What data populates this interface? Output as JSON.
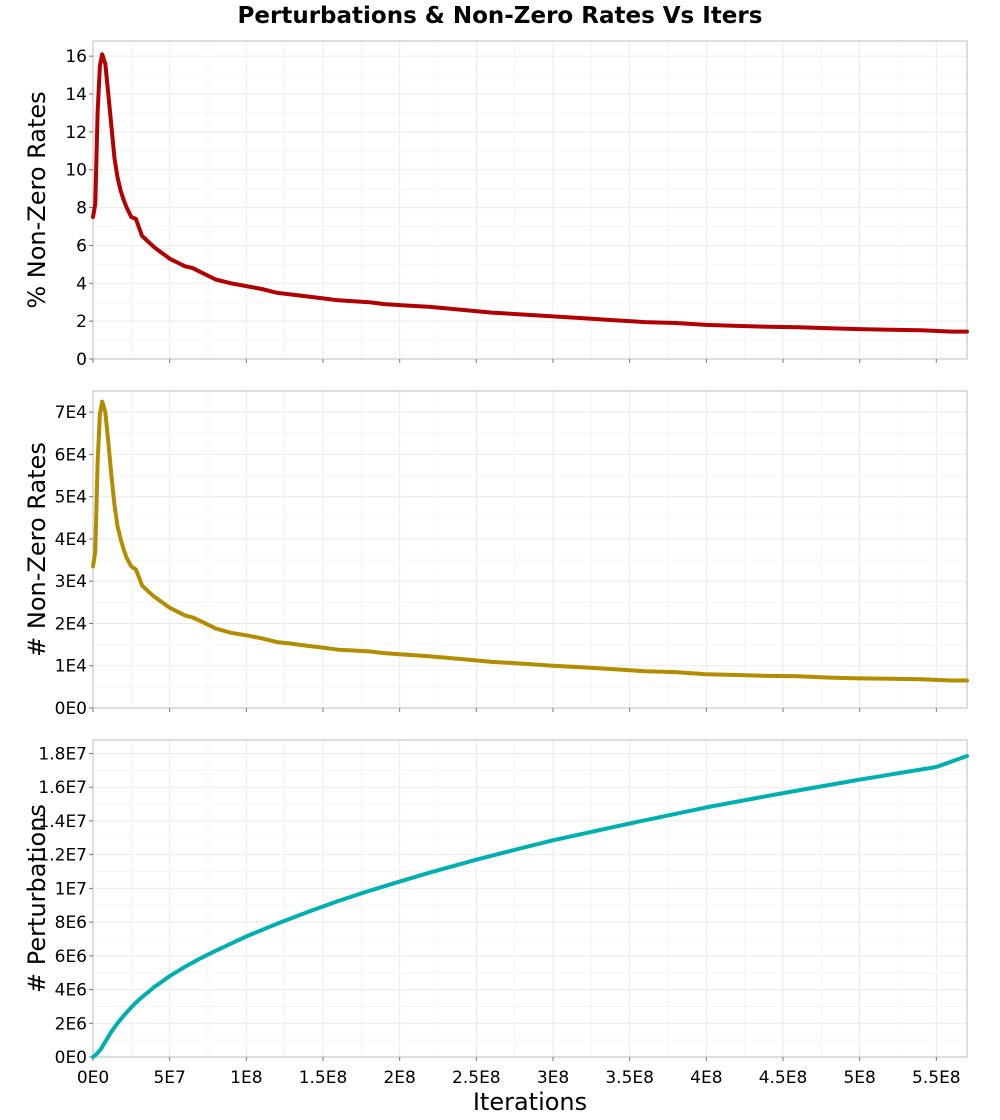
{
  "chart_data": {
    "title": "Perturbations & Non-Zero Rates Vs Iters",
    "type": "line",
    "x_axis": {
      "label": "Iterations",
      "lim": [
        0,
        570000000
      ],
      "ticks": [
        0,
        50000000,
        100000000,
        150000000,
        200000000,
        250000000,
        300000000,
        350000000,
        400000000,
        450000000,
        500000000,
        550000000
      ],
      "tick_labels": [
        "0E0",
        "5E7",
        "1E8",
        "1.5E8",
        "2E8",
        "2.5E8",
        "3E8",
        "3.5E8",
        "4E8",
        "4.5E8",
        "5E8",
        "5.5E8"
      ]
    },
    "grid": true,
    "panels": [
      {
        "ylabel": "% Non-Zero Rates",
        "ylim": [
          0,
          16.8
        ],
        "yticks": [
          0,
          2,
          4,
          6,
          8,
          10,
          12,
          14,
          16
        ],
        "ytick_labels": [
          "0",
          "2",
          "4",
          "6",
          "8",
          "10",
          "12",
          "14",
          "16"
        ],
        "color": "#b30000",
        "series": [
          {
            "x": [
              0,
              1500000,
              3000000,
              4500000,
              6000000,
              8000000,
              10000000,
              12000000,
              14000000,
              16000000,
              18000000,
              20000000,
              22000000,
              25000000,
              28000000,
              32000000,
              36000000,
              40000000,
              45000000,
              50000000,
              55000000,
              60000000,
              65000000,
              70000000,
              80000000,
              90000000,
              100000000,
              110000000,
              120000000,
              130000000,
              140000000,
              150000000,
              160000000,
              170000000,
              180000000,
              190000000,
              200000000,
              220000000,
              240000000,
              260000000,
              280000000,
              300000000,
              320000000,
              340000000,
              360000000,
              380000000,
              400000000,
              420000000,
              440000000,
              460000000,
              480000000,
              500000000,
              520000000,
              540000000,
              560000000,
              570000000
            ],
            "y": [
              7.5,
              8.2,
              13.0,
              15.5,
              16.1,
              15.6,
              14.0,
              12.3,
              10.6,
              9.6,
              8.9,
              8.4,
              8.0,
              7.5,
              7.4,
              6.5,
              6.2,
              5.9,
              5.6,
              5.3,
              5.1,
              4.9,
              4.8,
              4.6,
              4.2,
              4.0,
              3.85,
              3.7,
              3.5,
              3.4,
              3.3,
              3.2,
              3.1,
              3.05,
              3.0,
              2.9,
              2.85,
              2.75,
              2.6,
              2.45,
              2.35,
              2.25,
              2.15,
              2.05,
              1.95,
              1.9,
              1.8,
              1.75,
              1.7,
              1.68,
              1.62,
              1.58,
              1.55,
              1.52,
              1.45,
              1.45
            ]
          }
        ]
      },
      {
        "ylabel": "# Non-Zero Rates",
        "ylim": [
          0,
          75000
        ],
        "yticks": [
          0,
          10000,
          20000,
          30000,
          40000,
          50000,
          60000,
          70000
        ],
        "ytick_labels": [
          "0E0",
          "1E4",
          "2E4",
          "3E4",
          "4E4",
          "5E4",
          "6E4",
          "7E4"
        ],
        "color": "#b38c00",
        "series": [
          {
            "x": [
              0,
              1500000,
              3000000,
              4500000,
              6000000,
              8000000,
              10000000,
              12000000,
              14000000,
              16000000,
              18000000,
              20000000,
              22000000,
              25000000,
              28000000,
              32000000,
              36000000,
              40000000,
              45000000,
              50000000,
              55000000,
              60000000,
              65000000,
              70000000,
              80000000,
              90000000,
              100000000,
              110000000,
              120000000,
              130000000,
              140000000,
              150000000,
              160000000,
              170000000,
              180000000,
              190000000,
              200000000,
              220000000,
              240000000,
              260000000,
              280000000,
              300000000,
              320000000,
              340000000,
              360000000,
              380000000,
              400000000,
              420000000,
              440000000,
              460000000,
              480000000,
              500000000,
              520000000,
              540000000,
              560000000,
              570000000
            ],
            "y": [
              33500,
              37000,
              58000,
              69500,
              72500,
              70000,
              63000,
              55000,
              48000,
              43000,
              40000,
              37500,
              35500,
              33500,
              32800,
              29000,
              27600,
              26300,
              25000,
              23700,
              22800,
              21900,
              21400,
              20600,
              18800,
              17800,
              17200,
              16500,
              15600,
              15200,
              14700,
              14300,
              13800,
              13600,
              13400,
              13000,
              12700,
              12200,
              11600,
              10900,
              10500,
              10000,
              9600,
              9150,
              8700,
              8500,
              8000,
              7800,
              7600,
              7500,
              7200,
              7000,
              6900,
              6800,
              6500,
              6500
            ]
          }
        ]
      },
      {
        "ylabel": "# Perturbations",
        "ylim": [
          0,
          18800000
        ],
        "yticks": [
          0,
          2000000,
          4000000,
          6000000,
          8000000,
          10000000,
          12000000,
          14000000,
          16000000,
          18000000
        ],
        "ytick_labels": [
          "0E0",
          "2E6",
          "4E6",
          "6E6",
          "8E6",
          "1E7",
          "1.2E7",
          "1.4E7",
          "1.6E7",
          "1.8E7"
        ],
        "color": "#00b0b0",
        "series": [
          {
            "x": [
              0,
              2000000,
              5000000,
              8000000,
              12000000,
              16000000,
              20000000,
              25000000,
              30000000,
              40000000,
              50000000,
              60000000,
              70000000,
              80000000,
              100000000,
              120000000,
              140000000,
              160000000,
              180000000,
              200000000,
              220000000,
              250000000,
              280000000,
              300000000,
              350000000,
              400000000,
              450000000,
              500000000,
              550000000,
              570000000
            ],
            "y": [
              0,
              150000,
              450000,
              900000,
              1500000,
              2000000,
              2450000,
              2950000,
              3400000,
              4150000,
              4800000,
              5350000,
              5850000,
              6300000,
              7150000,
              7900000,
              8600000,
              9250000,
              9850000,
              10400000,
              10950000,
              11700000,
              12400000,
              12850000,
              13850000,
              14800000,
              15650000,
              16450000,
              17200000,
              17850000
            ]
          }
        ]
      }
    ]
  }
}
